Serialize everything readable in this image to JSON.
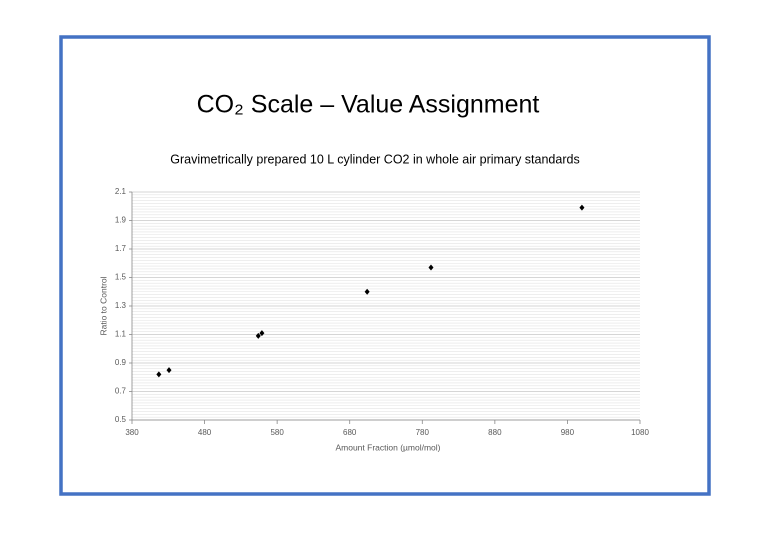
{
  "chart_data": {
    "type": "scatter",
    "title": "CO₂ Scale – Value Assignment",
    "subtitle": "Gravimetrically prepared 10 L cylinder CO2 in whole air primary standards",
    "x_label": "Amount Fraction (µmol/mol)",
    "y_label": "Ratio to Control",
    "x": [
      417,
      431,
      554,
      559,
      704,
      792,
      1000
    ],
    "values": [
      0.82,
      0.85,
      1.09,
      1.11,
      1.4,
      1.57,
      1.99
    ],
    "color": "#000000",
    "xlim": [
      380,
      1080
    ],
    "xticks": [
      380,
      480,
      580,
      680,
      780,
      880,
      980,
      1080
    ],
    "ylim": [
      0.5,
      2.1
    ],
    "yticks": [
      0.5,
      0.7,
      0.9,
      1.1,
      1.3,
      1.5,
      1.7,
      1.9,
      2.1
    ],
    "grid": true,
    "minor_grid": true
  }
}
